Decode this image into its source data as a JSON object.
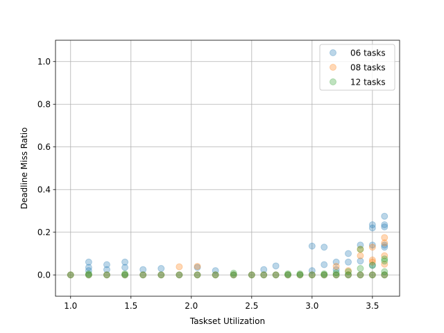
{
  "chart_data": {
    "type": "scatter",
    "title": "",
    "xlabel": "Taskset Utilization",
    "ylabel": "Deadline Miss Ratio",
    "xlim": [
      0.875,
      3.725
    ],
    "ylim": [
      -0.1,
      1.1
    ],
    "xticks": [
      1.0,
      1.5,
      2.0,
      2.5,
      3.0,
      3.5
    ],
    "xtick_labels": [
      "1.0",
      "1.5",
      "2.0",
      "2.5",
      "3.0",
      "3.5"
    ],
    "yticks": [
      0.0,
      0.2,
      0.4,
      0.6,
      0.8,
      1.0
    ],
    "ytick_labels": [
      "0.0",
      "0.2",
      "0.4",
      "0.6",
      "0.8",
      "1.0"
    ],
    "grid": true,
    "legend_position": "top-right",
    "series": [
      {
        "name": "06 tasks",
        "color": "#1f77b4",
        "points": [
          [
            1.0,
            0.0
          ],
          [
            1.15,
            0.06
          ],
          [
            1.15,
            0.035
          ],
          [
            1.15,
            0.02
          ],
          [
            1.15,
            0.0
          ],
          [
            1.3,
            0.048
          ],
          [
            1.3,
            0.025
          ],
          [
            1.3,
            0.0
          ],
          [
            1.45,
            0.06
          ],
          [
            1.45,
            0.035
          ],
          [
            1.45,
            0.0
          ],
          [
            1.6,
            0.025
          ],
          [
            1.6,
            0.0
          ],
          [
            1.75,
            0.03
          ],
          [
            1.75,
            0.0
          ],
          [
            1.9,
            0.0
          ],
          [
            2.05,
            0.035
          ],
          [
            2.05,
            0.0
          ],
          [
            2.2,
            0.02
          ],
          [
            2.2,
            0.0
          ],
          [
            2.35,
            0.0
          ],
          [
            2.5,
            0.0
          ],
          [
            2.6,
            0.025
          ],
          [
            2.6,
            0.0
          ],
          [
            2.7,
            0.042
          ],
          [
            2.7,
            0.0
          ],
          [
            2.8,
            0.0
          ],
          [
            2.9,
            0.0
          ],
          [
            3.0,
            0.135
          ],
          [
            3.0,
            0.02
          ],
          [
            3.0,
            0.0
          ],
          [
            3.1,
            0.13
          ],
          [
            3.1,
            0.048
          ],
          [
            3.1,
            0.0
          ],
          [
            3.2,
            0.06
          ],
          [
            3.2,
            0.025
          ],
          [
            3.2,
            0.0
          ],
          [
            3.3,
            0.1
          ],
          [
            3.3,
            0.06
          ],
          [
            3.3,
            0.0
          ],
          [
            3.4,
            0.14
          ],
          [
            3.4,
            0.065
          ],
          [
            3.4,
            0.0
          ],
          [
            3.5,
            0.235
          ],
          [
            3.5,
            0.22
          ],
          [
            3.5,
            0.14
          ],
          [
            3.5,
            0.045
          ],
          [
            3.5,
            0.0
          ],
          [
            3.6,
            0.275
          ],
          [
            3.6,
            0.235
          ],
          [
            3.6,
            0.225
          ],
          [
            3.6,
            0.14
          ],
          [
            3.6,
            0.13
          ],
          [
            3.6,
            0.0
          ]
        ]
      },
      {
        "name": "08 tasks",
        "color": "#ff7f0e",
        "points": [
          [
            1.0,
            0.0
          ],
          [
            1.15,
            0.0
          ],
          [
            1.3,
            0.0
          ],
          [
            1.45,
            0.0
          ],
          [
            1.6,
            0.0
          ],
          [
            1.75,
            0.0
          ],
          [
            1.9,
            0.038
          ],
          [
            1.9,
            0.0
          ],
          [
            2.05,
            0.04
          ],
          [
            2.05,
            0.0
          ],
          [
            2.2,
            0.0
          ],
          [
            2.35,
            0.0
          ],
          [
            2.5,
            0.0
          ],
          [
            2.6,
            0.0
          ],
          [
            2.7,
            0.0
          ],
          [
            2.8,
            0.0
          ],
          [
            2.9,
            0.0
          ],
          [
            3.0,
            0.0
          ],
          [
            3.1,
            0.0
          ],
          [
            3.2,
            0.04
          ],
          [
            3.2,
            0.0
          ],
          [
            3.3,
            0.02
          ],
          [
            3.3,
            0.0
          ],
          [
            3.4,
            0.12
          ],
          [
            3.4,
            0.09
          ],
          [
            3.4,
            0.0
          ],
          [
            3.5,
            0.13
          ],
          [
            3.5,
            0.07
          ],
          [
            3.5,
            0.06
          ],
          [
            3.5,
            0.0
          ],
          [
            3.6,
            0.175
          ],
          [
            3.6,
            0.15
          ],
          [
            3.6,
            0.09
          ],
          [
            3.6,
            0.05
          ],
          [
            3.6,
            0.0
          ]
        ]
      },
      {
        "name": "12 tasks",
        "color": "#2ca02c",
        "points": [
          [
            1.0,
            0.0
          ],
          [
            1.15,
            0.005
          ],
          [
            1.15,
            0.0
          ],
          [
            1.3,
            0.0
          ],
          [
            1.45,
            0.005
          ],
          [
            1.45,
            0.0
          ],
          [
            1.6,
            0.0
          ],
          [
            1.75,
            0.0
          ],
          [
            1.9,
            0.0
          ],
          [
            2.05,
            0.0
          ],
          [
            2.2,
            0.0
          ],
          [
            2.35,
            0.008
          ],
          [
            2.35,
            0.0
          ],
          [
            2.5,
            0.0
          ],
          [
            2.6,
            0.0
          ],
          [
            2.7,
            0.0
          ],
          [
            2.8,
            0.005
          ],
          [
            2.8,
            0.0
          ],
          [
            2.9,
            0.005
          ],
          [
            2.9,
            0.0
          ],
          [
            3.0,
            0.0
          ],
          [
            3.1,
            0.005
          ],
          [
            3.1,
            0.0
          ],
          [
            3.2,
            0.01
          ],
          [
            3.2,
            0.0
          ],
          [
            3.3,
            0.015
          ],
          [
            3.3,
            0.0
          ],
          [
            3.4,
            0.12
          ],
          [
            3.4,
            0.03
          ],
          [
            3.4,
            0.0
          ],
          [
            3.5,
            0.045
          ],
          [
            3.5,
            0.0
          ],
          [
            3.6,
            0.075
          ],
          [
            3.6,
            0.065
          ],
          [
            3.6,
            0.015
          ],
          [
            3.6,
            0.0
          ]
        ]
      }
    ]
  }
}
